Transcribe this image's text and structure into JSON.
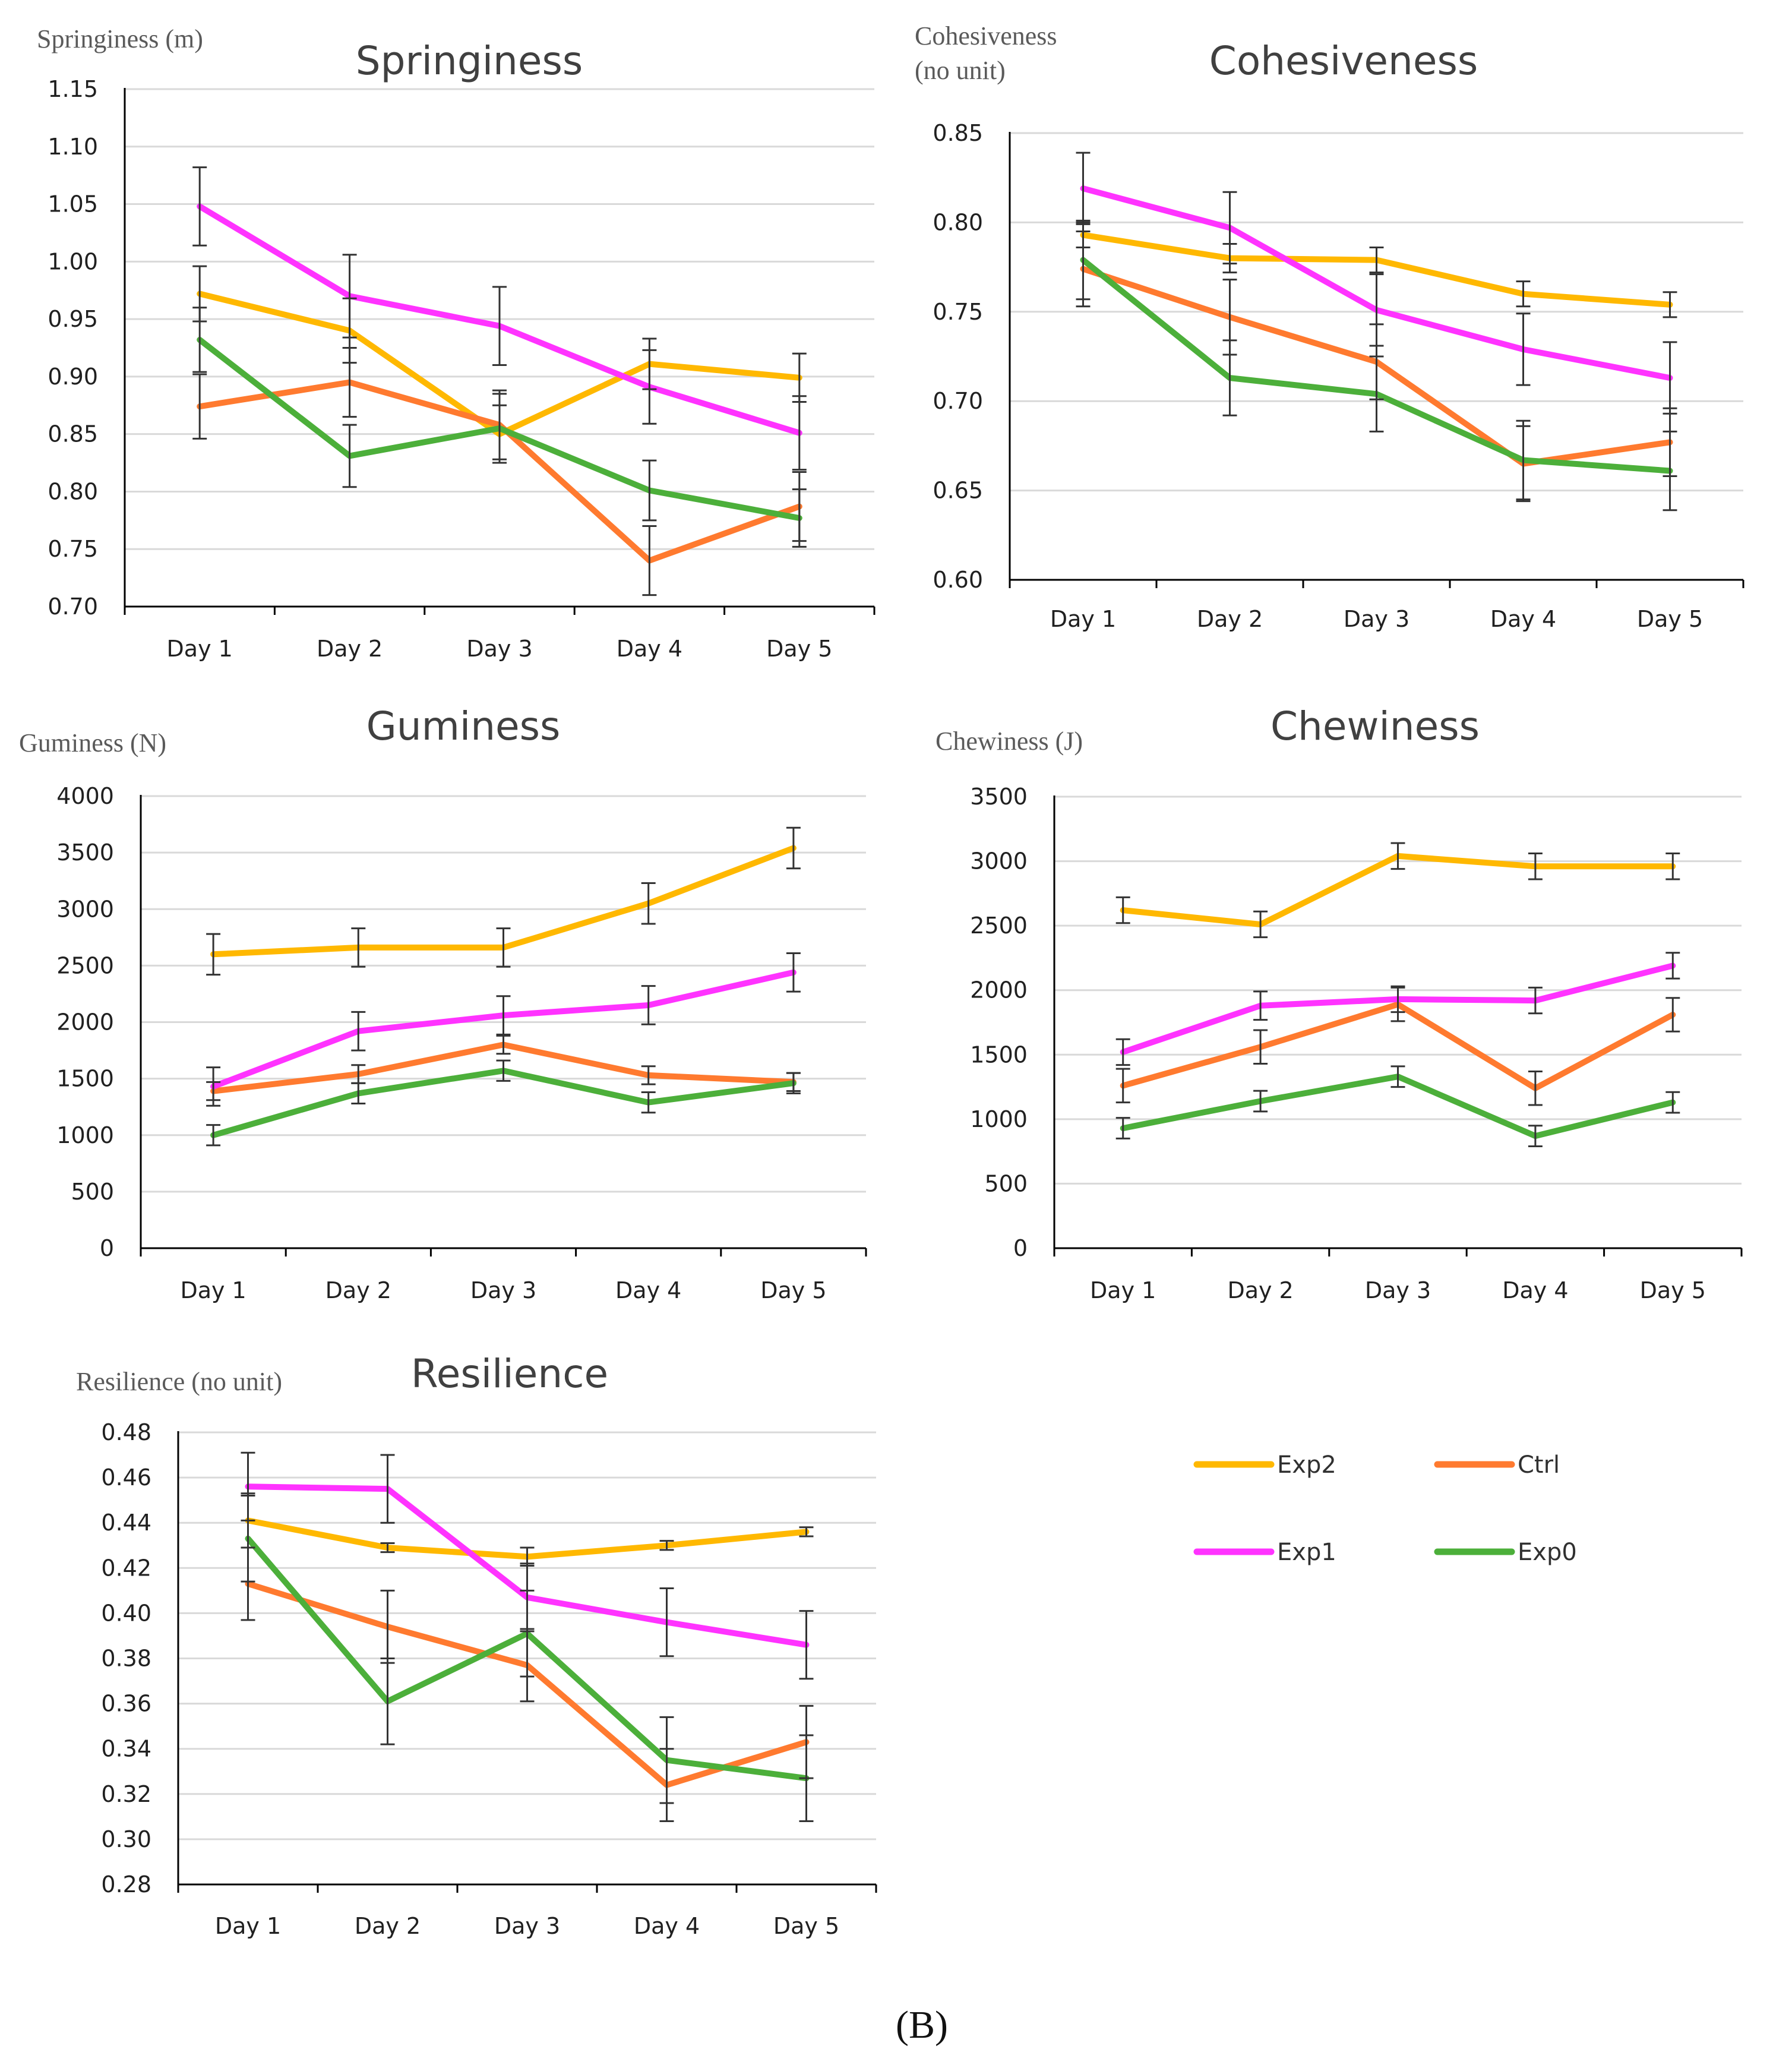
{
  "figure_label": "(B)",
  "colors": {
    "Exp2": "#FFB800",
    "Ctrl": "#FF7A2F",
    "Exp1": "#FF33FF",
    "Exp0": "#4CAF3A"
  },
  "legend": [
    {
      "name": "Exp2",
      "label": "Exp2"
    },
    {
      "name": "Ctrl",
      "label": "Ctrl"
    },
    {
      "name": "Exp1",
      "label": "Exp1"
    },
    {
      "name": "Exp0",
      "label": "Exp0"
    }
  ],
  "chart_data": [
    {
      "id": "springiness",
      "type": "line",
      "title": "Springiness",
      "ylabel": [
        "Springiness (m)"
      ],
      "categories": [
        "Day 1",
        "Day 2",
        "Day 3",
        "Day 4",
        "Day 5"
      ],
      "ylim": [
        0.7,
        1.15
      ],
      "ystep": 0.05,
      "decimals": 2,
      "yticks": [
        "0.70",
        "0.75",
        "0.80",
        "0.85",
        "0.90",
        "0.95",
        "1.00",
        "1.05",
        "1.10",
        "1.15"
      ],
      "series": [
        {
          "name": "Exp2",
          "values": [
            0.972,
            0.94,
            0.85,
            0.911,
            0.899
          ],
          "err": [
            0.024,
            0.028,
            0.025,
            0.022,
            0.021
          ]
        },
        {
          "name": "Ctrl",
          "values": [
            0.874,
            0.895,
            0.858,
            0.74,
            0.787
          ],
          "err": [
            0.028,
            0.03,
            0.03,
            0.03,
            0.03
          ]
        },
        {
          "name": "Exp1",
          "values": [
            1.048,
            0.97,
            0.944,
            0.891,
            0.851
          ],
          "err": [
            0.034,
            0.036,
            0.034,
            0.032,
            0.032
          ]
        },
        {
          "name": "Exp0",
          "values": [
            0.932,
            0.831,
            0.855,
            0.801,
            0.777
          ],
          "err": [
            0.028,
            0.027,
            0.03,
            0.026,
            0.025
          ]
        }
      ]
    },
    {
      "id": "cohesiveness",
      "type": "line",
      "title": "Cohesiveness",
      "ylabel": [
        "Cohesiveness",
        "(no unit)"
      ],
      "categories": [
        "Day 1",
        "Day 2",
        "Day 3",
        "Day 4",
        "Day 5"
      ],
      "ylim": [
        0.6,
        0.85
      ],
      "ystep": 0.05,
      "decimals": 2,
      "yticks": [
        "0.60",
        "0.65",
        "0.70",
        "0.75",
        "0.80",
        "0.85"
      ],
      "series": [
        {
          "name": "Exp2",
          "values": [
            0.793,
            0.78,
            0.779,
            0.76,
            0.754
          ],
          "err": [
            0.007,
            0.008,
            0.007,
            0.007,
            0.007
          ]
        },
        {
          "name": "Ctrl",
          "values": [
            0.774,
            0.747,
            0.722,
            0.665,
            0.677
          ],
          "err": [
            0.021,
            0.021,
            0.021,
            0.021,
            0.019
          ]
        },
        {
          "name": "Exp1",
          "values": [
            0.819,
            0.797,
            0.751,
            0.729,
            0.713
          ],
          "err": [
            0.02,
            0.02,
            0.02,
            0.02,
            0.02
          ]
        },
        {
          "name": "Exp0",
          "values": [
            0.779,
            0.713,
            0.704,
            0.667,
            0.661
          ],
          "err": [
            0.022,
            0.021,
            0.021,
            0.022,
            0.022
          ]
        }
      ]
    },
    {
      "id": "guminess",
      "type": "line",
      "title": "Guminess",
      "ylabel": [
        "Guminess (N)"
      ],
      "categories": [
        "Day 1",
        "Day 2",
        "Day 3",
        "Day 4",
        "Day 5"
      ],
      "ylim": [
        0,
        4000
      ],
      "ystep": 500,
      "decimals": 0,
      "yticks": [
        "0",
        "500",
        "1000",
        "1500",
        "2000",
        "2500",
        "3000",
        "3500",
        "4000"
      ],
      "series": [
        {
          "name": "Exp2",
          "values": [
            2600,
            2660,
            2660,
            3050,
            3540
          ],
          "err": [
            180,
            170,
            170,
            180,
            180
          ]
        },
        {
          "name": "Ctrl",
          "values": [
            1390,
            1540,
            1800,
            1530,
            1470
          ],
          "err": [
            80,
            80,
            80,
            80,
            80
          ]
        },
        {
          "name": "Exp1",
          "values": [
            1430,
            1920,
            2060,
            2150,
            2440
          ],
          "err": [
            170,
            170,
            170,
            170,
            170
          ]
        },
        {
          "name": "Exp0",
          "values": [
            1000,
            1370,
            1570,
            1290,
            1460
          ],
          "err": [
            90,
            90,
            90,
            90,
            90
          ]
        }
      ]
    },
    {
      "id": "chewiness",
      "type": "line",
      "title": "Chewiness",
      "ylabel": [
        "Chewiness (J)"
      ],
      "categories": [
        "Day 1",
        "Day 2",
        "Day 3",
        "Day 4",
        "Day 5"
      ],
      "ylim": [
        0,
        3500
      ],
      "ystep": 500,
      "decimals": 0,
      "yticks": [
        "0",
        "500",
        "1000",
        "1500",
        "2000",
        "2500",
        "3000",
        "3500"
      ],
      "series": [
        {
          "name": "Exp2",
          "values": [
            2620,
            2510,
            3040,
            2960,
            2960
          ],
          "err": [
            100,
            100,
            100,
            100,
            100
          ]
        },
        {
          "name": "Ctrl",
          "values": [
            1260,
            1560,
            1890,
            1240,
            1810
          ],
          "err": [
            130,
            130,
            130,
            130,
            130
          ]
        },
        {
          "name": "Exp1",
          "values": [
            1520,
            1880,
            1930,
            1920,
            2190
          ],
          "err": [
            100,
            110,
            100,
            100,
            100
          ]
        },
        {
          "name": "Exp0",
          "values": [
            930,
            1140,
            1330,
            870,
            1130
          ],
          "err": [
            80,
            80,
            80,
            80,
            80
          ]
        }
      ]
    },
    {
      "id": "resilience",
      "type": "line",
      "title": "Resilience",
      "ylabel": [
        "Resilience (no unit)"
      ],
      "categories": [
        "Day 1",
        "Day 2",
        "Day 3",
        "Day 4",
        "Day 5"
      ],
      "ylim": [
        0.28,
        0.48
      ],
      "ystep": 0.02,
      "decimals": 2,
      "yticks": [
        "0.28",
        "0.30",
        "0.32",
        "0.34",
        "0.36",
        "0.38",
        "0.40",
        "0.42",
        "0.44",
        "0.46",
        "0.48"
      ],
      "series": [
        {
          "name": "Exp2",
          "values": [
            0.441,
            0.429,
            0.425,
            0.43,
            0.436
          ],
          "err": [
            0.012,
            0.002,
            0.004,
            0.002,
            0.002
          ]
        },
        {
          "name": "Ctrl",
          "values": [
            0.413,
            0.394,
            0.377,
            0.324,
            0.343
          ],
          "err": [
            0.016,
            0.016,
            0.016,
            0.016,
            0.016
          ]
        },
        {
          "name": "Exp1",
          "values": [
            0.456,
            0.455,
            0.407,
            0.396,
            0.386
          ],
          "err": [
            0.015,
            0.015,
            0.015,
            0.015,
            0.015
          ]
        },
        {
          "name": "Exp0",
          "values": [
            0.433,
            0.361,
            0.391,
            0.335,
            0.327
          ],
          "err": [
            0.019,
            0.019,
            0.019,
            0.019,
            0.019
          ]
        }
      ]
    }
  ]
}
